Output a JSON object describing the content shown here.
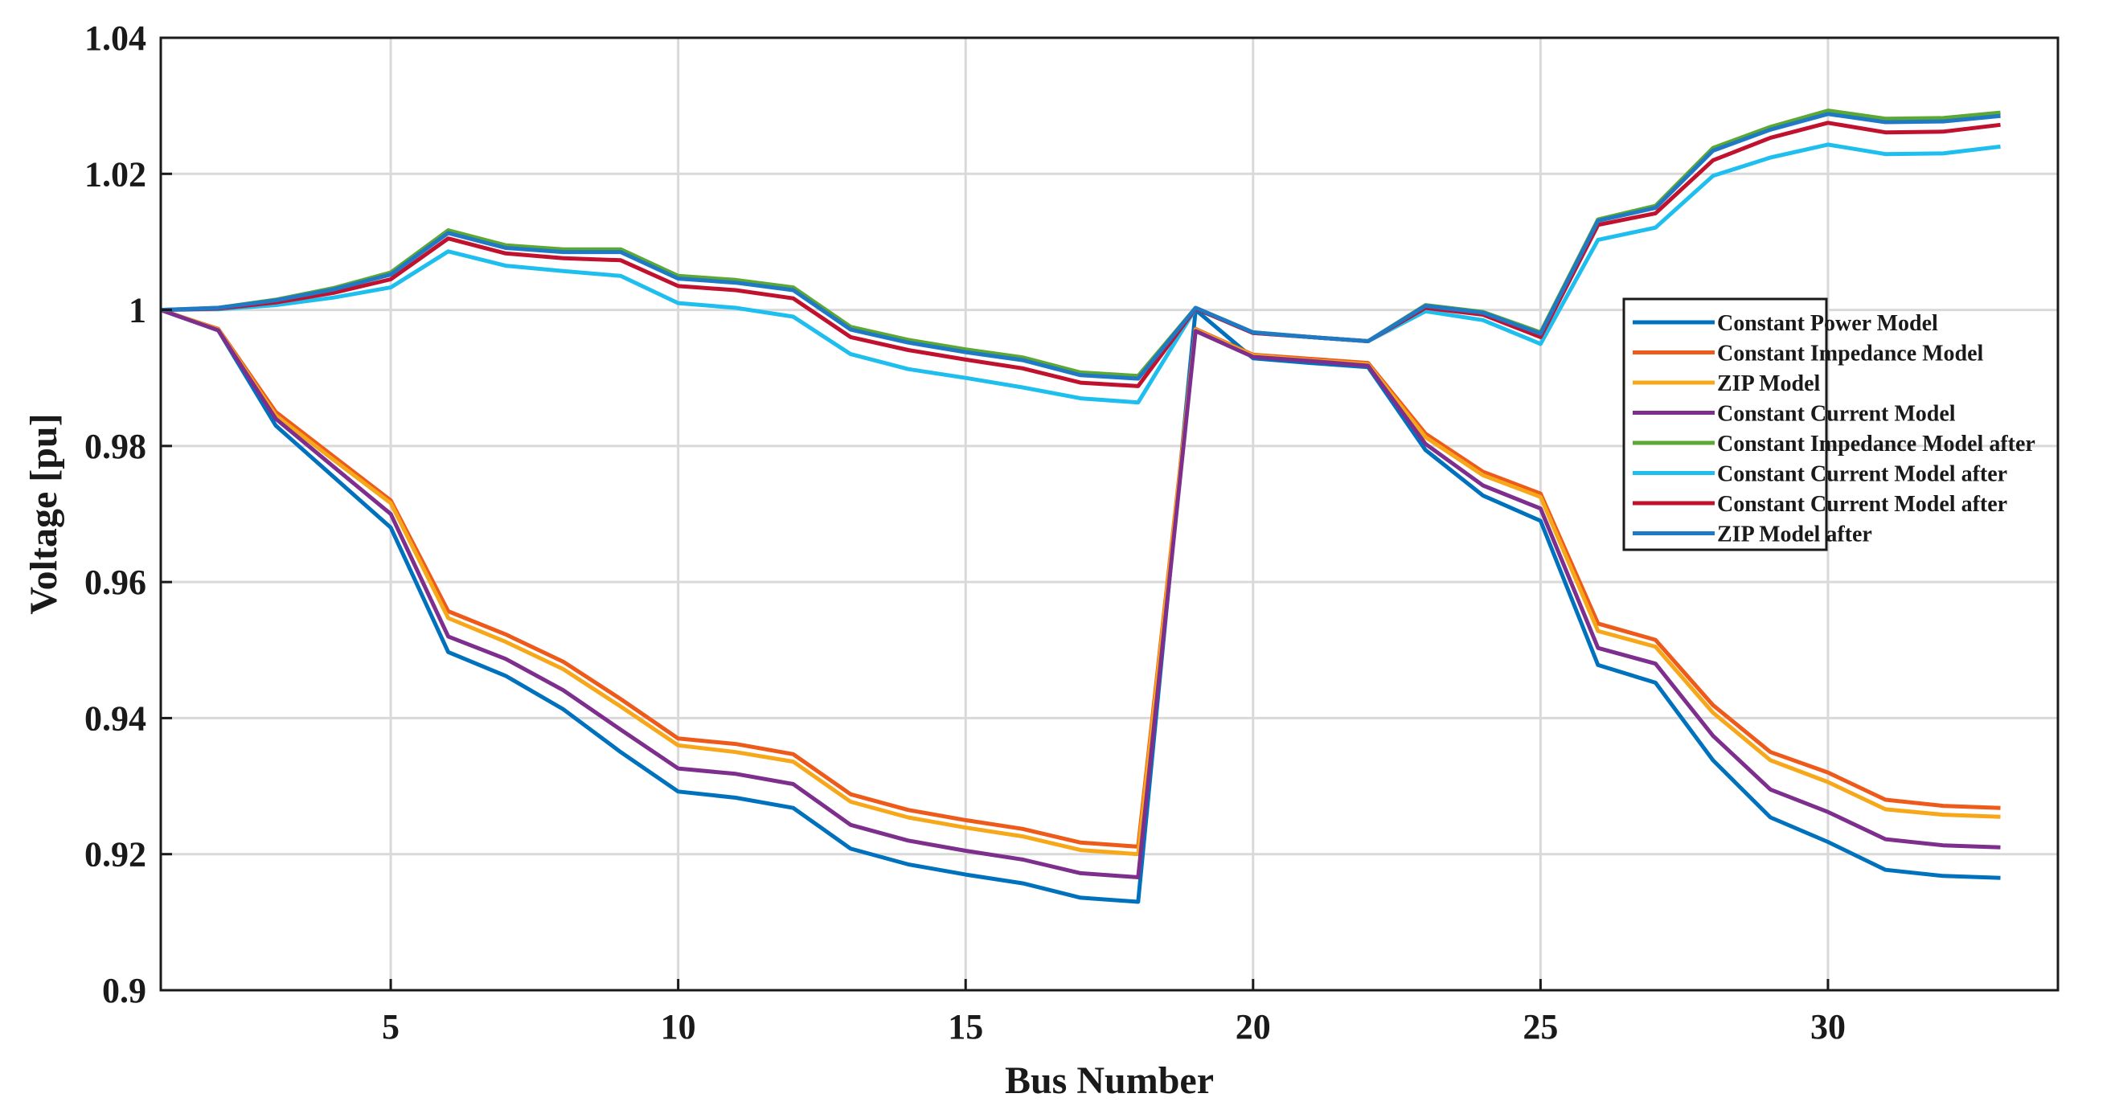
{
  "chart_data": {
    "type": "line",
    "xlabel": "Bus Number",
    "ylabel": "Voltage [pu]",
    "xlim": [
      1,
      34
    ],
    "ylim": [
      0.9,
      1.04
    ],
    "xticks": [
      5,
      10,
      15,
      20,
      25,
      30
    ],
    "xtick_labels": [
      "5",
      "10",
      "15",
      "20",
      "25",
      "30"
    ],
    "yticks": [
      0.9,
      0.92,
      0.94,
      0.96,
      0.98,
      1.0,
      1.02,
      1.04
    ],
    "ytick_labels": [
      "0.9",
      "0.92",
      "0.94",
      "0.96",
      "0.98",
      "1",
      "1.02",
      "1.04"
    ],
    "grid": true,
    "legend_position": "right",
    "x": [
      1,
      2,
      3,
      4,
      5,
      6,
      7,
      8,
      9,
      10,
      11,
      12,
      13,
      14,
      15,
      16,
      17,
      18,
      19,
      20,
      21,
      22,
      23,
      24,
      25,
      26,
      27,
      28,
      29,
      30,
      31,
      32,
      33
    ],
    "series": [
      {
        "name": "Constant Power Model",
        "color": "#0072BD",
        "values": [
          1.0,
          0.997,
          0.983,
          0.9755,
          0.968,
          0.9497,
          0.9462,
          0.9413,
          0.935,
          0.9292,
          0.9283,
          0.9268,
          0.9208,
          0.9185,
          0.917,
          0.9157,
          0.9136,
          0.913,
          1.0,
          0.9929,
          0.9922,
          0.9916,
          0.9794,
          0.9727,
          0.969,
          0.9478,
          0.9452,
          0.9338,
          0.9254,
          0.9218,
          0.9177,
          0.9168,
          0.9165
        ]
      },
      {
        "name": "Constant Impedance Model",
        "color": "#EE5A1A",
        "values": [
          1.0,
          0.9972,
          0.985,
          0.9785,
          0.972,
          0.9557,
          0.9523,
          0.9483,
          0.9428,
          0.937,
          0.9362,
          0.9347,
          0.9288,
          0.9265,
          0.925,
          0.9237,
          0.9217,
          0.9211,
          0.9972,
          0.9934,
          0.9928,
          0.9922,
          0.9818,
          0.9762,
          0.973,
          0.9539,
          0.9515,
          0.9419,
          0.935,
          0.932,
          0.928,
          0.9271,
          0.9268
        ]
      },
      {
        "name": "ZIP Model",
        "color": "#F6A81A",
        "values": [
          1.0,
          0.9971,
          0.9845,
          0.978,
          0.9716,
          0.9547,
          0.9512,
          0.9472,
          0.9417,
          0.936,
          0.935,
          0.9336,
          0.9277,
          0.9254,
          0.9239,
          0.9226,
          0.9206,
          0.92,
          0.9971,
          0.9933,
          0.9926,
          0.992,
          0.9813,
          0.9757,
          0.9725,
          0.9528,
          0.9505,
          0.9408,
          0.9338,
          0.9306,
          0.9266,
          0.9258,
          0.9255
        ]
      },
      {
        "name": "Constant Current Model",
        "color": "#7E2F8E",
        "values": [
          1.0,
          0.997,
          0.984,
          0.977,
          0.97,
          0.952,
          0.9487,
          0.9441,
          0.9383,
          0.9326,
          0.9318,
          0.9303,
          0.9243,
          0.922,
          0.9205,
          0.9192,
          0.9172,
          0.9166,
          0.9969,
          0.9931,
          0.9925,
          0.9918,
          0.9803,
          0.9742,
          0.9708,
          0.9503,
          0.948,
          0.9374,
          0.9295,
          0.9262,
          0.9222,
          0.9213,
          0.921
        ]
      },
      {
        "name": "Constant Impedance Model after",
        "color": "#5BA832",
        "values": [
          1.0,
          1.0003,
          1.0015,
          1.0032,
          1.0055,
          1.0117,
          1.0095,
          1.0089,
          1.0089,
          1.005,
          1.0044,
          1.0033,
          0.9975,
          0.9956,
          0.9942,
          0.993,
          0.9908,
          0.9903,
          1.0003,
          0.9967,
          0.996,
          0.9954,
          1.0007,
          0.9997,
          0.9967,
          1.0133,
          1.0153,
          1.0238,
          1.0269,
          1.0293,
          1.0281,
          1.0282,
          1.029
        ]
      },
      {
        "name": "Constant Current Model after",
        "color": "#1EBFEE",
        "values": [
          1.0,
          1.0001,
          1.0007,
          1.0018,
          1.0033,
          1.0086,
          1.0065,
          1.0057,
          1.005,
          1.001,
          1.0003,
          0.999,
          0.9935,
          0.9913,
          0.99,
          0.9886,
          0.987,
          0.9864,
          1.0002,
          0.9966,
          0.996,
          0.9954,
          0.9998,
          0.9985,
          0.995,
          1.0103,
          1.0121,
          1.0197,
          1.0224,
          1.0243,
          1.0229,
          1.023,
          1.024
        ]
      },
      {
        "name": "Constant Current Model after",
        "color": "#C0122E",
        "values": [
          1.0,
          1.0002,
          1.0011,
          1.0025,
          1.0045,
          1.0105,
          1.0083,
          1.0076,
          1.0073,
          1.0035,
          1.0029,
          1.0017,
          0.996,
          0.9941,
          0.9927,
          0.9914,
          0.9893,
          0.9888,
          1.0002,
          0.9966,
          0.996,
          0.9954,
          1.0003,
          0.9993,
          0.996,
          1.0125,
          1.0142,
          1.022,
          1.0253,
          1.0275,
          1.0261,
          1.0262,
          1.0272
        ]
      },
      {
        "name": "ZIP Model after",
        "color": "#1F79C4",
        "values": [
          1.0,
          1.0003,
          1.0014,
          1.003,
          1.0052,
          1.0113,
          1.0091,
          1.0085,
          1.0085,
          1.0046,
          1.004,
          1.0029,
          0.9971,
          0.9952,
          0.9938,
          0.9926,
          0.9904,
          0.9899,
          1.0003,
          0.9967,
          0.996,
          0.9954,
          1.0006,
          0.9996,
          0.9965,
          1.0131,
          1.015,
          1.0234,
          1.0265,
          1.0288,
          1.0276,
          1.0277,
          1.0285
        ]
      }
    ]
  }
}
